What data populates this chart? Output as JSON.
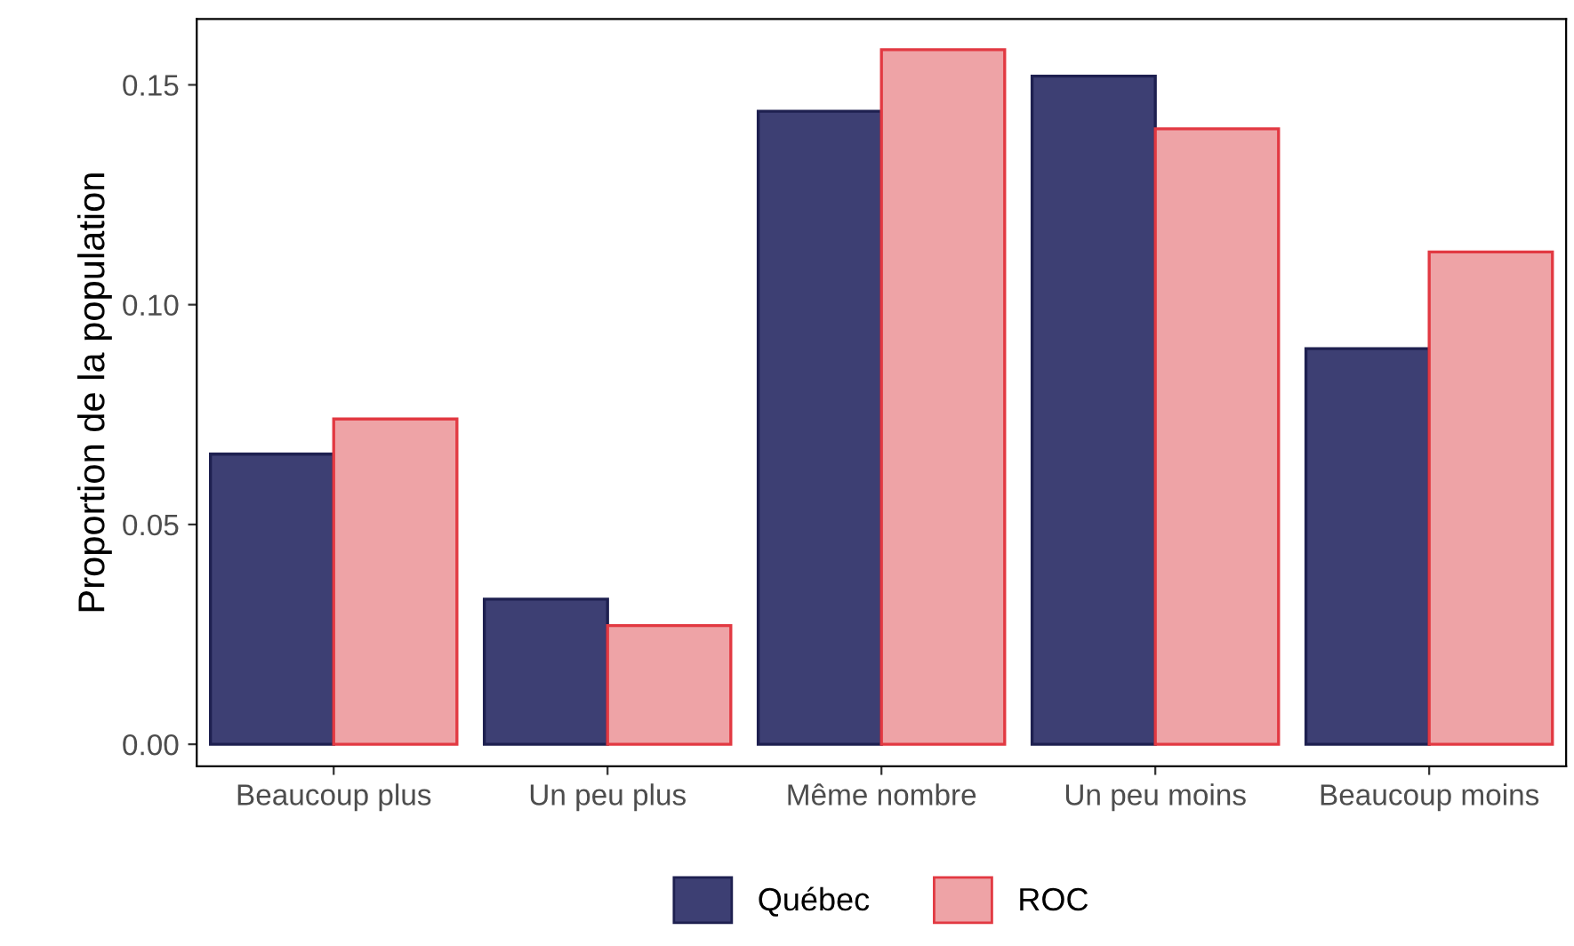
{
  "chart_data": {
    "type": "bar",
    "ylabel": "Proportion de la population",
    "categories": [
      "Beaucoup plus",
      "Un peu plus",
      "Même nombre",
      "Un peu moins",
      "Beaucoup moins"
    ],
    "series": [
      {
        "name": "Québec",
        "color": "#3d3f73",
        "values": [
          0.066,
          0.033,
          0.144,
          0.152,
          0.09
        ]
      },
      {
        "name": "ROC",
        "color": "#eea3a6",
        "values": [
          0.074,
          0.027,
          0.158,
          0.14,
          0.112
        ]
      }
    ],
    "ylim": [
      -0.005,
      0.165
    ],
    "yticks": [
      {
        "value": 0,
        "label": "0.00"
      },
      {
        "value": 0.05,
        "label": "0.05"
      },
      {
        "value": 0.1,
        "label": "0.10"
      },
      {
        "value": 0.15,
        "label": "0.15"
      }
    ],
    "grid": false,
    "legend": "bottom"
  }
}
